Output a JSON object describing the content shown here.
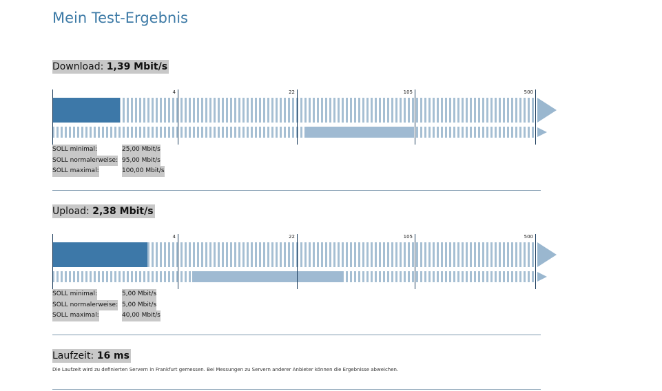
{
  "page": {
    "title": "Mein Test-Ergebnis"
  },
  "scale_labels": [
    "4",
    "22",
    "105",
    "500"
  ],
  "download": {
    "label": "Download:",
    "value": "1,39 Mbit/s",
    "measured_fraction": 0.14,
    "soll_range_fraction": [
      0.522,
      0.748
    ],
    "soll": [
      {
        "label": "SOLL minimal:",
        "value": "25,00 Mbit/s"
      },
      {
        "label": "SOLL normalerweise:",
        "value": "95,00 Mbit/s"
      },
      {
        "label": "SOLL maximal:",
        "value": "100,00 Mbit/s"
      }
    ]
  },
  "upload": {
    "label": "Upload:",
    "value": "2,38 Mbit/s",
    "measured_fraction": 0.196,
    "soll_range_fraction": [
      0.289,
      0.601
    ],
    "soll": [
      {
        "label": "SOLL minimal:",
        "value": "5,00 Mbit/s"
      },
      {
        "label": "SOLL normalerweise:",
        "value": "5,00 Mbit/s"
      },
      {
        "label": "SOLL maximal:",
        "value": "40,00 Mbit/s"
      }
    ]
  },
  "latency": {
    "label": "Laufzeit:",
    "value": "16 ms",
    "note": "Die Laufzeit wird zu definierten Servern in Frankfurt gemessen. Bei Messungen zu Servern anderer Anbieter können die Ergebnisse abweichen."
  },
  "colors": {
    "title": "#3d7aa6",
    "measured": "#3d78a8",
    "soll": "#9fbad2",
    "stripe": "#a6bfd3"
  }
}
